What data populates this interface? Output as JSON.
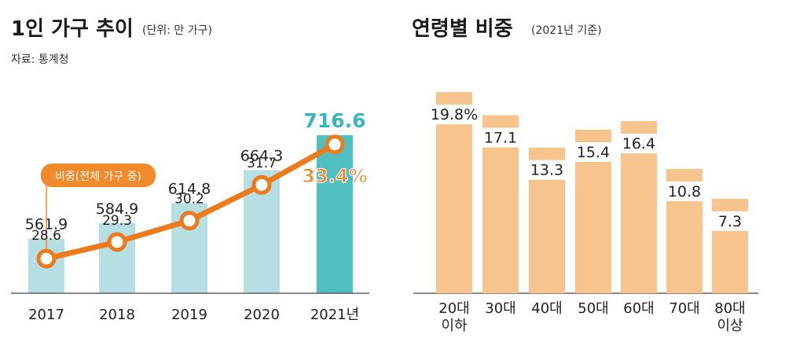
{
  "colors": {
    "bar": "#b5dfe2",
    "bar_highlight": "#4fbfc1",
    "value_highlight": "#38b6bb",
    "line": "#ee7a1e",
    "line_highlight": "#f08a2b",
    "age_bar": "#f7c48e",
    "callout_bg": "#f08a2b"
  },
  "left_panel": {
    "title": "1인 가구 추이",
    "unit": "(단위: 만 가구)",
    "source": "자료: 통계청",
    "callout": "비중(전체 가구 중)"
  },
  "right_panel": {
    "title": "연령별 비중",
    "basis": "(2021년 기준)"
  },
  "chart_data": [
    {
      "type": "bar",
      "title": "1인 가구 추이",
      "unit": "(단위: 만 가구)",
      "categories": [
        "2017",
        "2018",
        "2019",
        "2020",
        "2021년"
      ],
      "series": [
        {
          "name": "",
          "values": [
            561.9,
            584.9,
            614.8,
            664.3,
            716.6
          ]
        },
        {
          "name": "비중(전체 가구 중)",
          "type": "line",
          "values": [
            28.6,
            29.3,
            30.2,
            31.7,
            33.4
          ]
        }
      ],
      "value_labels": [
        "561.9",
        "584.9",
        "614.8",
        "664.3",
        "716.6"
      ],
      "line_labels": [
        "28.6",
        "29.3",
        "30.2",
        "31.7",
        "33.4%"
      ],
      "highlight_index": 4,
      "grid": false
    },
    {
      "type": "bar",
      "title": "연령별 비중",
      "basis": "(2021년 기준)",
      "categories": [
        [
          "20대",
          "이하"
        ],
        [
          "30대"
        ],
        [
          "40대"
        ],
        [
          "50대"
        ],
        [
          "60대"
        ],
        [
          "70대"
        ],
        [
          "80대",
          "이상"
        ]
      ],
      "values": [
        19.8,
        17.1,
        13.3,
        15.4,
        16.4,
        10.8,
        7.3
      ],
      "value_labels": [
        "19.8%",
        "17.1",
        "13.3",
        "15.4",
        "16.4",
        "10.8",
        "7.3"
      ],
      "grid": false
    }
  ]
}
